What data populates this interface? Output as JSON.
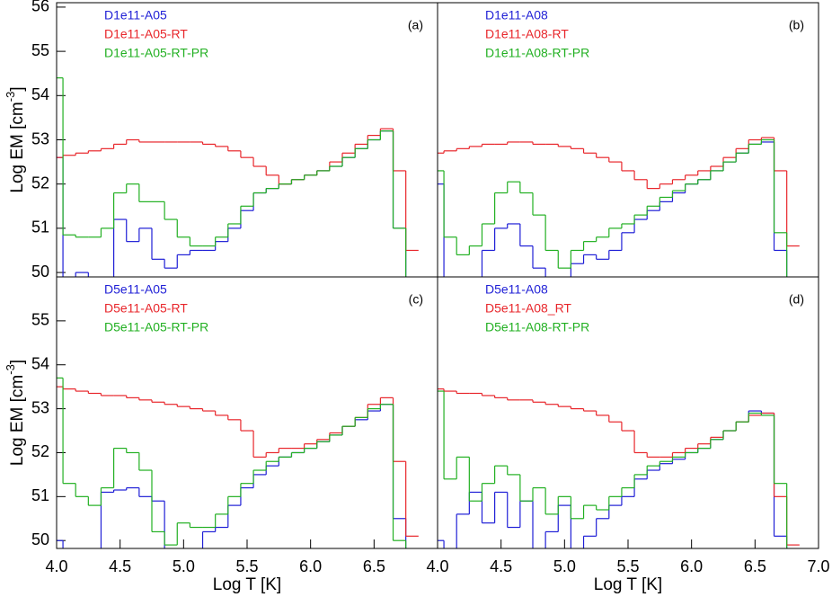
{
  "chart_data": [
    {
      "type": "line",
      "step": true,
      "panel_label": "(a)",
      "ylabel": [
        "Log EM [cm",
        "-3",
        "]"
      ],
      "xlim": [
        4.0,
        7.0
      ],
      "ylim": [
        49.9,
        56.1
      ],
      "yticks": [
        50,
        51,
        52,
        53,
        54,
        55,
        56
      ],
      "x": [
        4.0,
        4.1,
        4.2,
        4.3,
        4.4,
        4.5,
        4.6,
        4.7,
        4.8,
        4.9,
        5.0,
        5.1,
        5.2,
        5.3,
        5.4,
        5.5,
        5.6,
        5.7,
        5.8,
        5.9,
        6.0,
        6.1,
        6.2,
        6.3,
        6.4,
        6.5,
        6.6,
        6.7,
        6.8
      ],
      "series": [
        {
          "name": "D1e11-A05",
          "color": "#1f1fd6",
          "values": [
            52.6,
            null,
            50.0,
            null,
            null,
            51.2,
            50.7,
            51.0,
            50.3,
            50.1,
            50.4,
            50.5,
            50.5,
            50.7,
            51.0,
            51.4,
            51.8,
            51.9,
            52.0,
            52.1,
            52.2,
            52.3,
            52.4,
            52.6,
            52.8,
            53.0,
            53.2,
            51.0,
            null
          ]
        },
        {
          "name": "D1e11-A05-RT",
          "color": "#e8262b",
          "values": [
            52.6,
            52.65,
            52.7,
            52.75,
            52.8,
            52.9,
            53.0,
            52.95,
            52.95,
            52.95,
            52.95,
            52.95,
            52.9,
            52.85,
            52.75,
            52.6,
            52.4,
            52.2,
            52.0,
            52.1,
            52.2,
            52.3,
            52.5,
            52.7,
            52.9,
            53.1,
            53.25,
            52.3,
            50.5
          ]
        },
        {
          "name": "D1e11-A05-RT-PR",
          "color": "#22b022",
          "values": [
            54.4,
            50.85,
            50.8,
            50.8,
            51.0,
            51.8,
            52.0,
            51.6,
            51.6,
            51.2,
            50.8,
            50.6,
            50.6,
            50.8,
            51.1,
            51.5,
            51.8,
            51.9,
            52.0,
            52.1,
            52.2,
            52.3,
            52.4,
            52.6,
            52.8,
            53.0,
            53.2,
            51.0,
            null
          ]
        }
      ]
    },
    {
      "type": "line",
      "step": true,
      "panel_label": "(b)",
      "xlim": [
        4.0,
        7.0
      ],
      "ylim": [
        49.9,
        56.1
      ],
      "x": [
        4.0,
        4.1,
        4.2,
        4.3,
        4.4,
        4.5,
        4.6,
        4.7,
        4.8,
        4.9,
        5.0,
        5.1,
        5.2,
        5.3,
        5.4,
        5.5,
        5.6,
        5.7,
        5.8,
        5.9,
        6.0,
        6.1,
        6.2,
        6.3,
        6.4,
        6.5,
        6.6,
        6.7,
        6.8
      ],
      "series": [
        {
          "name": "D1e11-A08",
          "color": "#1f1fd6",
          "values": [
            52.0,
            null,
            null,
            null,
            50.5,
            51.0,
            51.1,
            50.6,
            50.1,
            null,
            null,
            50.2,
            50.4,
            50.3,
            50.5,
            50.9,
            51.2,
            51.4,
            51.6,
            51.8,
            52.0,
            52.1,
            52.3,
            52.5,
            52.7,
            52.9,
            52.95,
            50.5,
            null
          ]
        },
        {
          "name": "D1e11-A08-RT",
          "color": "#e8262b",
          "values": [
            52.7,
            52.75,
            52.8,
            52.85,
            52.9,
            52.9,
            52.95,
            52.95,
            52.9,
            52.9,
            52.85,
            52.8,
            52.7,
            52.6,
            52.5,
            52.3,
            52.1,
            51.9,
            52.0,
            52.1,
            52.2,
            52.3,
            52.4,
            52.6,
            52.8,
            53.0,
            53.05,
            52.3,
            50.6
          ]
        },
        {
          "name": "D1e11-A08-RT-PR",
          "color": "#22b022",
          "values": [
            52.3,
            50.8,
            50.4,
            50.6,
            51.1,
            51.8,
            52.05,
            51.8,
            51.3,
            50.5,
            50.1,
            50.5,
            50.7,
            50.8,
            51.0,
            51.1,
            51.3,
            51.5,
            51.7,
            51.85,
            52.0,
            52.1,
            52.3,
            52.5,
            52.7,
            52.9,
            53.0,
            50.9,
            null
          ]
        }
      ]
    },
    {
      "type": "line",
      "step": true,
      "panel_label": "(c)",
      "ylabel": [
        "Log EM [cm",
        "-3",
        "]"
      ],
      "xlabel": "Log T [K]",
      "xlim": [
        4.0,
        7.0
      ],
      "ylim": [
        49.82,
        56.0
      ],
      "yticks": [
        50,
        51,
        52,
        53,
        54,
        55
      ],
      "xticks": [
        {
          "value": 4.0,
          "label": "4.0"
        },
        4.5,
        {
          "value": 5.0,
          "label": "5.0"
        },
        5.5,
        {
          "value": 6.0,
          "label": "6.0"
        },
        6.5
      ],
      "x": [
        4.0,
        4.1,
        4.2,
        4.3,
        4.4,
        4.5,
        4.6,
        4.7,
        4.8,
        4.9,
        5.0,
        5.1,
        5.2,
        5.3,
        5.4,
        5.5,
        5.6,
        5.7,
        5.8,
        5.9,
        6.0,
        6.1,
        6.2,
        6.3,
        6.4,
        6.5,
        6.6,
        6.7,
        6.8
      ],
      "series": [
        {
          "name": "D5e11-A05",
          "color": "#1f1fd6",
          "values": [
            50.0,
            null,
            null,
            null,
            51.1,
            51.15,
            51.2,
            51.0,
            50.9,
            null,
            null,
            null,
            50.2,
            50.3,
            50.8,
            51.2,
            51.5,
            51.7,
            51.9,
            52.0,
            52.1,
            52.25,
            52.4,
            52.6,
            52.75,
            52.95,
            53.1,
            50.5,
            null
          ]
        },
        {
          "name": "D5e11-A05-RT",
          "color": "#e8262b",
          "values": [
            53.5,
            53.45,
            53.4,
            53.35,
            53.3,
            53.3,
            53.25,
            53.2,
            53.15,
            53.1,
            53.05,
            53.0,
            52.95,
            52.85,
            52.75,
            52.5,
            51.9,
            52.0,
            52.1,
            52.1,
            52.2,
            52.3,
            52.45,
            52.6,
            52.8,
            53.1,
            53.25,
            51.8,
            50.1
          ]
        },
        {
          "name": "D5e11-A05-RT-PR",
          "color": "#22b022",
          "values": [
            53.7,
            51.3,
            51.0,
            50.8,
            51.2,
            52.1,
            52.0,
            51.6,
            50.2,
            49.9,
            50.4,
            50.3,
            50.3,
            50.6,
            51.0,
            51.3,
            51.6,
            51.8,
            51.9,
            52.0,
            52.1,
            52.25,
            52.4,
            52.6,
            52.8,
            53.0,
            53.1,
            50.0,
            null
          ]
        }
      ]
    },
    {
      "type": "line",
      "step": true,
      "panel_label": "(d)",
      "xlabel": "Log T [K]",
      "xlim": [
        4.0,
        7.0
      ],
      "ylim": [
        49.82,
        56.0
      ],
      "xticks": [
        {
          "value": 4.0,
          "label": "4.0"
        },
        4.5,
        {
          "value": 5.0,
          "label": "5.0"
        },
        5.5,
        {
          "value": 6.0,
          "label": "6.0"
        },
        6.5,
        {
          "value": 7.0,
          "label": "7.0"
        }
      ],
      "x": [
        4.0,
        4.1,
        4.2,
        4.3,
        4.4,
        4.5,
        4.6,
        4.7,
        4.8,
        4.9,
        5.0,
        5.1,
        5.2,
        5.3,
        5.4,
        5.5,
        5.6,
        5.7,
        5.8,
        5.9,
        6.0,
        6.1,
        6.2,
        6.3,
        6.4,
        6.5,
        6.6,
        6.7,
        6.8
      ],
      "series": [
        {
          "name": "D5e11-A08",
          "color": "#1f1fd6",
          "values": [
            50.0,
            null,
            50.6,
            51.1,
            50.4,
            51.1,
            50.3,
            50.9,
            null,
            50.2,
            50.8,
            null,
            50.1,
            50.5,
            50.8,
            51.0,
            51.4,
            51.6,
            51.75,
            51.85,
            52.0,
            52.1,
            52.3,
            52.5,
            52.7,
            52.95,
            52.9,
            50.1,
            null
          ]
        },
        {
          "name": "D5e11-A08_RT",
          "color": "#e8262b",
          "values": [
            53.45,
            53.4,
            53.35,
            53.35,
            53.3,
            53.25,
            53.2,
            53.2,
            53.15,
            53.1,
            53.05,
            53.0,
            52.95,
            52.85,
            52.7,
            52.5,
            52.0,
            51.9,
            51.9,
            52.0,
            52.1,
            52.2,
            52.35,
            52.5,
            52.7,
            52.85,
            52.9,
            51.0,
            49.9
          ]
        },
        {
          "name": "D5e11-A08-RT-PR",
          "color": "#22b022",
          "values": [
            53.4,
            51.4,
            51.9,
            50.9,
            51.3,
            51.7,
            51.5,
            50.9,
            51.2,
            50.6,
            51.0,
            50.5,
            50.8,
            50.7,
            51.0,
            51.2,
            51.5,
            51.7,
            51.8,
            51.9,
            52.0,
            52.1,
            52.3,
            52.5,
            52.7,
            52.9,
            52.85,
            51.3,
            null
          ]
        }
      ]
    }
  ]
}
